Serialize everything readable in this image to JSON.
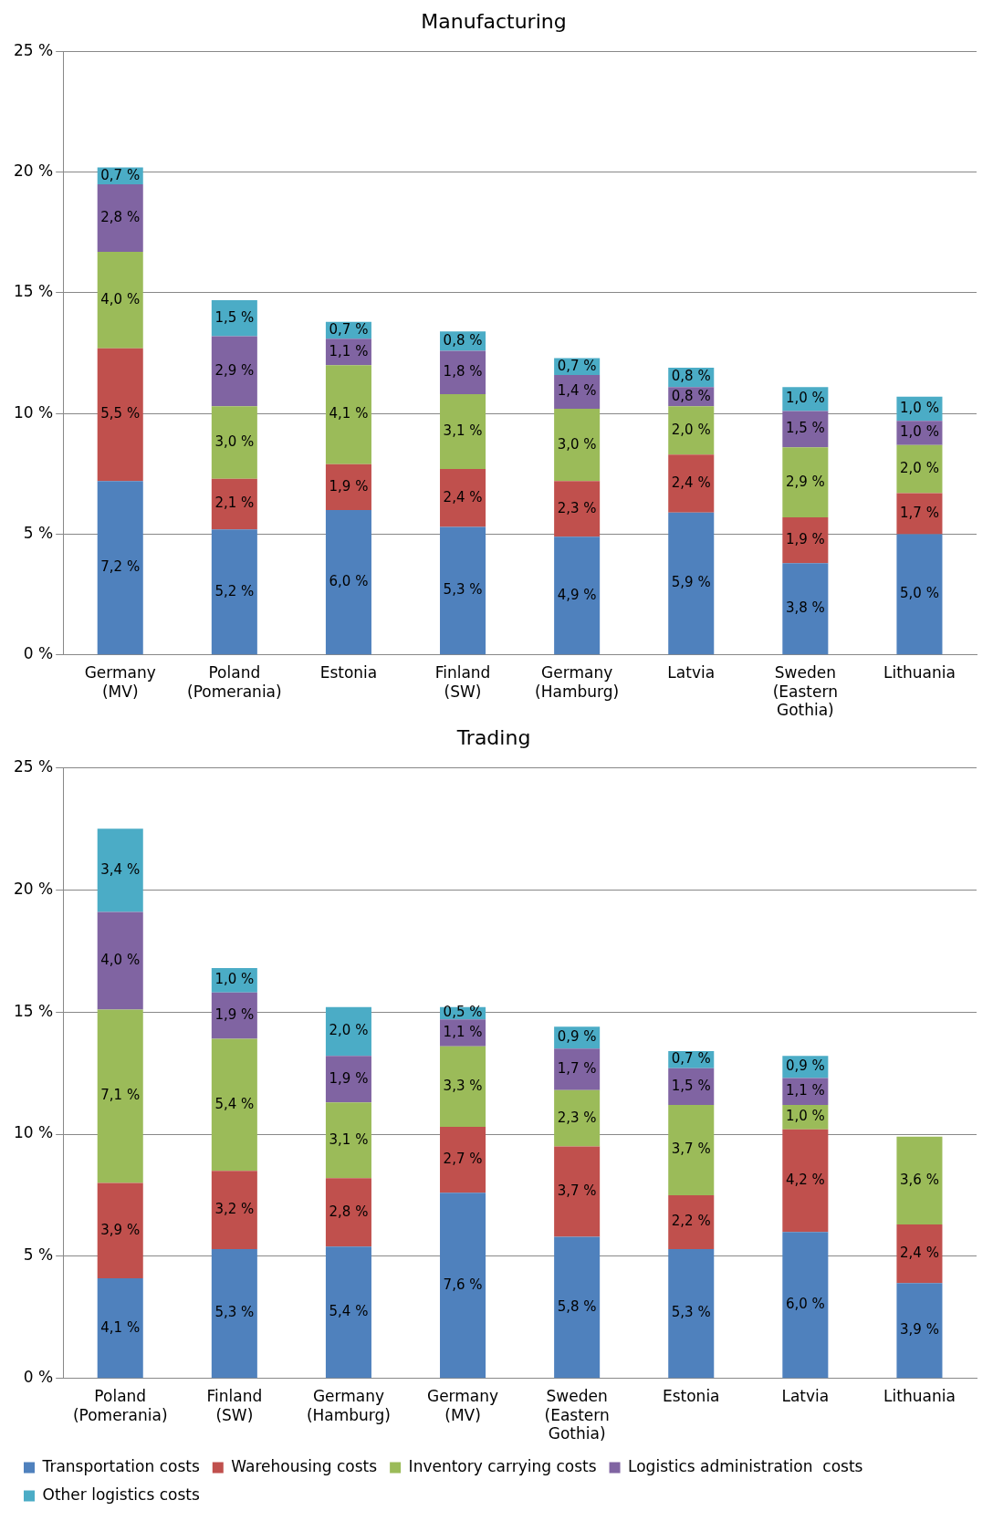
{
  "chart_data": [
    {
      "type": "bar",
      "title": "Manufacturing",
      "stacked": true,
      "grid": "y",
      "legend": false,
      "categories": [
        "Germany (MV)",
        "Poland (Pomerania)",
        "Estonia",
        "Finland (SW)",
        "Germany (Hamburg)",
        "Latvia",
        "Sweden (Eastern Gothia)",
        "Lithuania"
      ],
      "ylim": [
        0,
        25
      ],
      "yticks": [
        {
          "value": 0,
          "label": "0 %"
        },
        {
          "value": 5,
          "label": "5 %"
        },
        {
          "value": 10,
          "label": "10 %"
        },
        {
          "value": 15,
          "label": "15 %"
        },
        {
          "value": 20,
          "label": "20 %"
        },
        {
          "value": 25,
          "label": "25 %"
        }
      ],
      "series": [
        {
          "color": "#4f81bd",
          "values": [
            7.2,
            5.2,
            6.0,
            5.3,
            4.9,
            5.9,
            3.8,
            5.0
          ],
          "value_labels": [
            "7,2 %",
            "5,2 %",
            "6,0 %",
            "5,3 %",
            "4,9 %",
            "5,9 %",
            "3,8 %",
            "5,0 %"
          ]
        },
        {
          "color": "#c0504d",
          "values": [
            5.5,
            2.1,
            1.9,
            2.4,
            2.3,
            2.4,
            1.9,
            1.7
          ],
          "value_labels": [
            "5,5 %",
            "2,1 %",
            "1,9 %",
            "2,4 %",
            "2,3 %",
            "2,4 %",
            "1,9 %",
            "1,7 %"
          ]
        },
        {
          "color": "#9bbb59",
          "values": [
            4.0,
            3.0,
            4.1,
            3.1,
            3.0,
            2.0,
            2.9,
            2.0
          ],
          "value_labels": [
            "4,0 %",
            "3,0 %",
            "4,1 %",
            "3,1 %",
            "3,0 %",
            "2,0 %",
            "2,9 %",
            "2,0 %"
          ]
        },
        {
          "color": "#8064a2",
          "values": [
            2.8,
            2.9,
            1.1,
            1.8,
            1.4,
            0.8,
            1.5,
            1.0
          ],
          "value_labels": [
            "2,8 %",
            "2,9 %",
            "1,1 %",
            "1,8 %",
            "1,4 %",
            "0,8 %",
            "1,5 %",
            "1,0 %"
          ]
        },
        {
          "color": "#4bacc6",
          "values": [
            0.7,
            1.5,
            0.7,
            0.8,
            0.7,
            0.8,
            1.0,
            1.0
          ],
          "value_labels": [
            "0,7 %",
            "1,5 %",
            "0,7 %",
            "0,8 %",
            "0,7 %",
            "0,8 %",
            "1,0 %",
            "1,0 %"
          ]
        }
      ]
    },
    {
      "type": "bar",
      "title": "Trading",
      "stacked": true,
      "grid": "y",
      "legend": "bottom",
      "categories": [
        "Poland (Pomerania)",
        "Finland (SW)",
        "Germany (Hamburg)",
        "Germany (MV)",
        "Sweden (Eastern Gothia)",
        "Estonia",
        "Latvia",
        "Lithuania"
      ],
      "ylim": [
        0,
        25
      ],
      "yticks": [
        {
          "value": 0,
          "label": "0 %"
        },
        {
          "value": 5,
          "label": "5 %"
        },
        {
          "value": 10,
          "label": "10 %"
        },
        {
          "value": 15,
          "label": "15 %"
        },
        {
          "value": 20,
          "label": "20 %"
        },
        {
          "value": 25,
          "label": "25 %"
        }
      ],
      "series": [
        {
          "name": "Transportation costs",
          "color": "#4f81bd",
          "values": [
            4.1,
            5.3,
            5.4,
            7.6,
            5.8,
            5.3,
            6.0,
            3.9
          ],
          "value_labels": [
            "4,1 %",
            "5,3 %",
            "5,4 %",
            "7,6 %",
            "5,8 %",
            "5,3 %",
            "6,0 %",
            "3,9 %"
          ]
        },
        {
          "name": "Warehousing costs",
          "color": "#c0504d",
          "values": [
            3.9,
            3.2,
            2.8,
            2.7,
            3.7,
            2.2,
            4.2,
            2.4
          ],
          "value_labels": [
            "3,9 %",
            "3,2 %",
            "2,8 %",
            "2,7 %",
            "3,7 %",
            "2,2 %",
            "4,2 %",
            "2,4 %"
          ]
        },
        {
          "name": "Inventory carrying costs",
          "color": "#9bbb59",
          "values": [
            7.1,
            5.4,
            3.1,
            3.3,
            2.3,
            3.7,
            1.0,
            3.6
          ],
          "value_labels": [
            "7,1 %",
            "5,4 %",
            "3,1 %",
            "3,3 %",
            "2,3 %",
            "3,7 %",
            "1,0 %",
            "3,6 %"
          ]
        },
        {
          "name": "Logistics administration  costs",
          "color": "#8064a2",
          "values": [
            4.0,
            1.9,
            1.9,
            1.1,
            1.7,
            1.5,
            1.1,
            null
          ],
          "value_labels": [
            "4,0 %",
            "1,9 %",
            "1,9 %",
            "1,1 %",
            "1,7 %",
            "1,5 %",
            "1,1 %",
            null
          ]
        },
        {
          "name": "Other logistics costs",
          "color": "#4bacc6",
          "values": [
            3.4,
            1.0,
            2.0,
            0.5,
            0.9,
            0.7,
            0.9,
            null
          ],
          "value_labels": [
            "3,4 %",
            "1,0 %",
            "2,0 %",
            "0,5 %",
            "0,9 %",
            "0,7 %",
            "0,9 %",
            null
          ]
        }
      ]
    }
  ]
}
